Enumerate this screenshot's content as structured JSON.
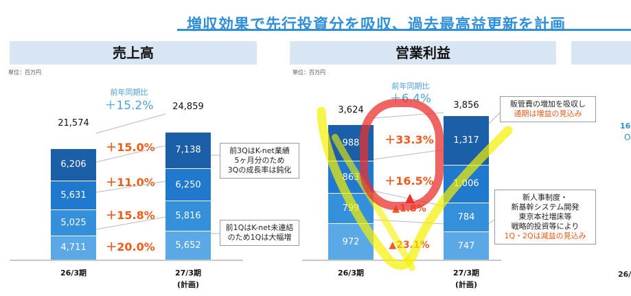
{
  "headline": "増収効果で先行投資分を吸収、過去最高益更新を計画",
  "colors": {
    "seg_q4": "#1a5fa8",
    "seg_q3": "#2079cc",
    "seg_q2": "#3590dc",
    "seg_q1": "#5aa9e6",
    "growth": "#f25a1a",
    "accent": "#2f8fd8",
    "band": "#d8e6f4"
  },
  "right_panel_partial": {
    "text1": "16.",
    "text2": "O",
    "xlabel": "26/"
  },
  "chart_data": [
    {
      "type": "bar",
      "stacked": true,
      "title": "売上高",
      "unit": "単位：百万円",
      "yoy_label": "前年同期比",
      "yoy_value": "＋15.2%",
      "categories": [
        "26/3期",
        "27/3期"
      ],
      "category_sub": [
        "",
        "(計画)"
      ],
      "totals": [
        "21,574",
        "24,859"
      ],
      "series": [
        {
          "name": "",
          "values": [
            4711,
            5652
          ],
          "labels": [
            "4,711",
            "5,652"
          ]
        },
        {
          "name": "",
          "values": [
            5025,
            5816
          ],
          "labels": [
            "5,025",
            "5,816"
          ]
        },
        {
          "name": "",
          "values": [
            5631,
            6250
          ],
          "labels": [
            "5,631",
            "6,250"
          ]
        },
        {
          "name": "",
          "values": [
            6206,
            7138
          ],
          "labels": [
            "6,206",
            "7,138"
          ]
        }
      ],
      "growth_labels": [
        "＋20.0%",
        "＋15.8%",
        "＋11.0%",
        "＋15.0%"
      ],
      "notes": [
        {
          "lines": [
            "前3QはK-net業績",
            "5ヶ月分のため",
            "3Qの成長率は鈍化"
          ]
        },
        {
          "lines": [
            "前1QはK-net未連結",
            "のため1Qは大幅増"
          ]
        }
      ]
    },
    {
      "type": "bar",
      "stacked": true,
      "title": "営業利益",
      "unit": "単位：百万円",
      "yoy_label": "前年同期比",
      "yoy_value": "＋6.4%",
      "categories": [
        "26/3期",
        "27/3期"
      ],
      "category_sub": [
        "",
        "(計画)"
      ],
      "totals": [
        "3,624",
        "3,856"
      ],
      "series": [
        {
          "name": "",
          "values": [
            972,
            747
          ],
          "labels": [
            "972",
            "747"
          ]
        },
        {
          "name": "",
          "values": [
            799,
            784
          ],
          "labels": [
            "799",
            "784"
          ]
        },
        {
          "name": "",
          "values": [
            863,
            1006
          ],
          "labels": [
            "863",
            "1,006"
          ]
        },
        {
          "name": "",
          "values": [
            988,
            1317
          ],
          "labels": [
            "988",
            "1,317"
          ]
        }
      ],
      "growth_labels": [
        "▲23.1%",
        "▲1.8%",
        "＋16.5%",
        "＋33.3%"
      ],
      "notes": [
        {
          "lines": [
            "販管費の増加を吸収し",
            "通期は増益の見込み"
          ]
        },
        {
          "lines": [
            "新人事制度・",
            "新基幹システム開発",
            "東京本社増床等",
            "戦略的投資等により",
            "1Q・2Qは減益の見込み"
          ]
        }
      ]
    }
  ]
}
